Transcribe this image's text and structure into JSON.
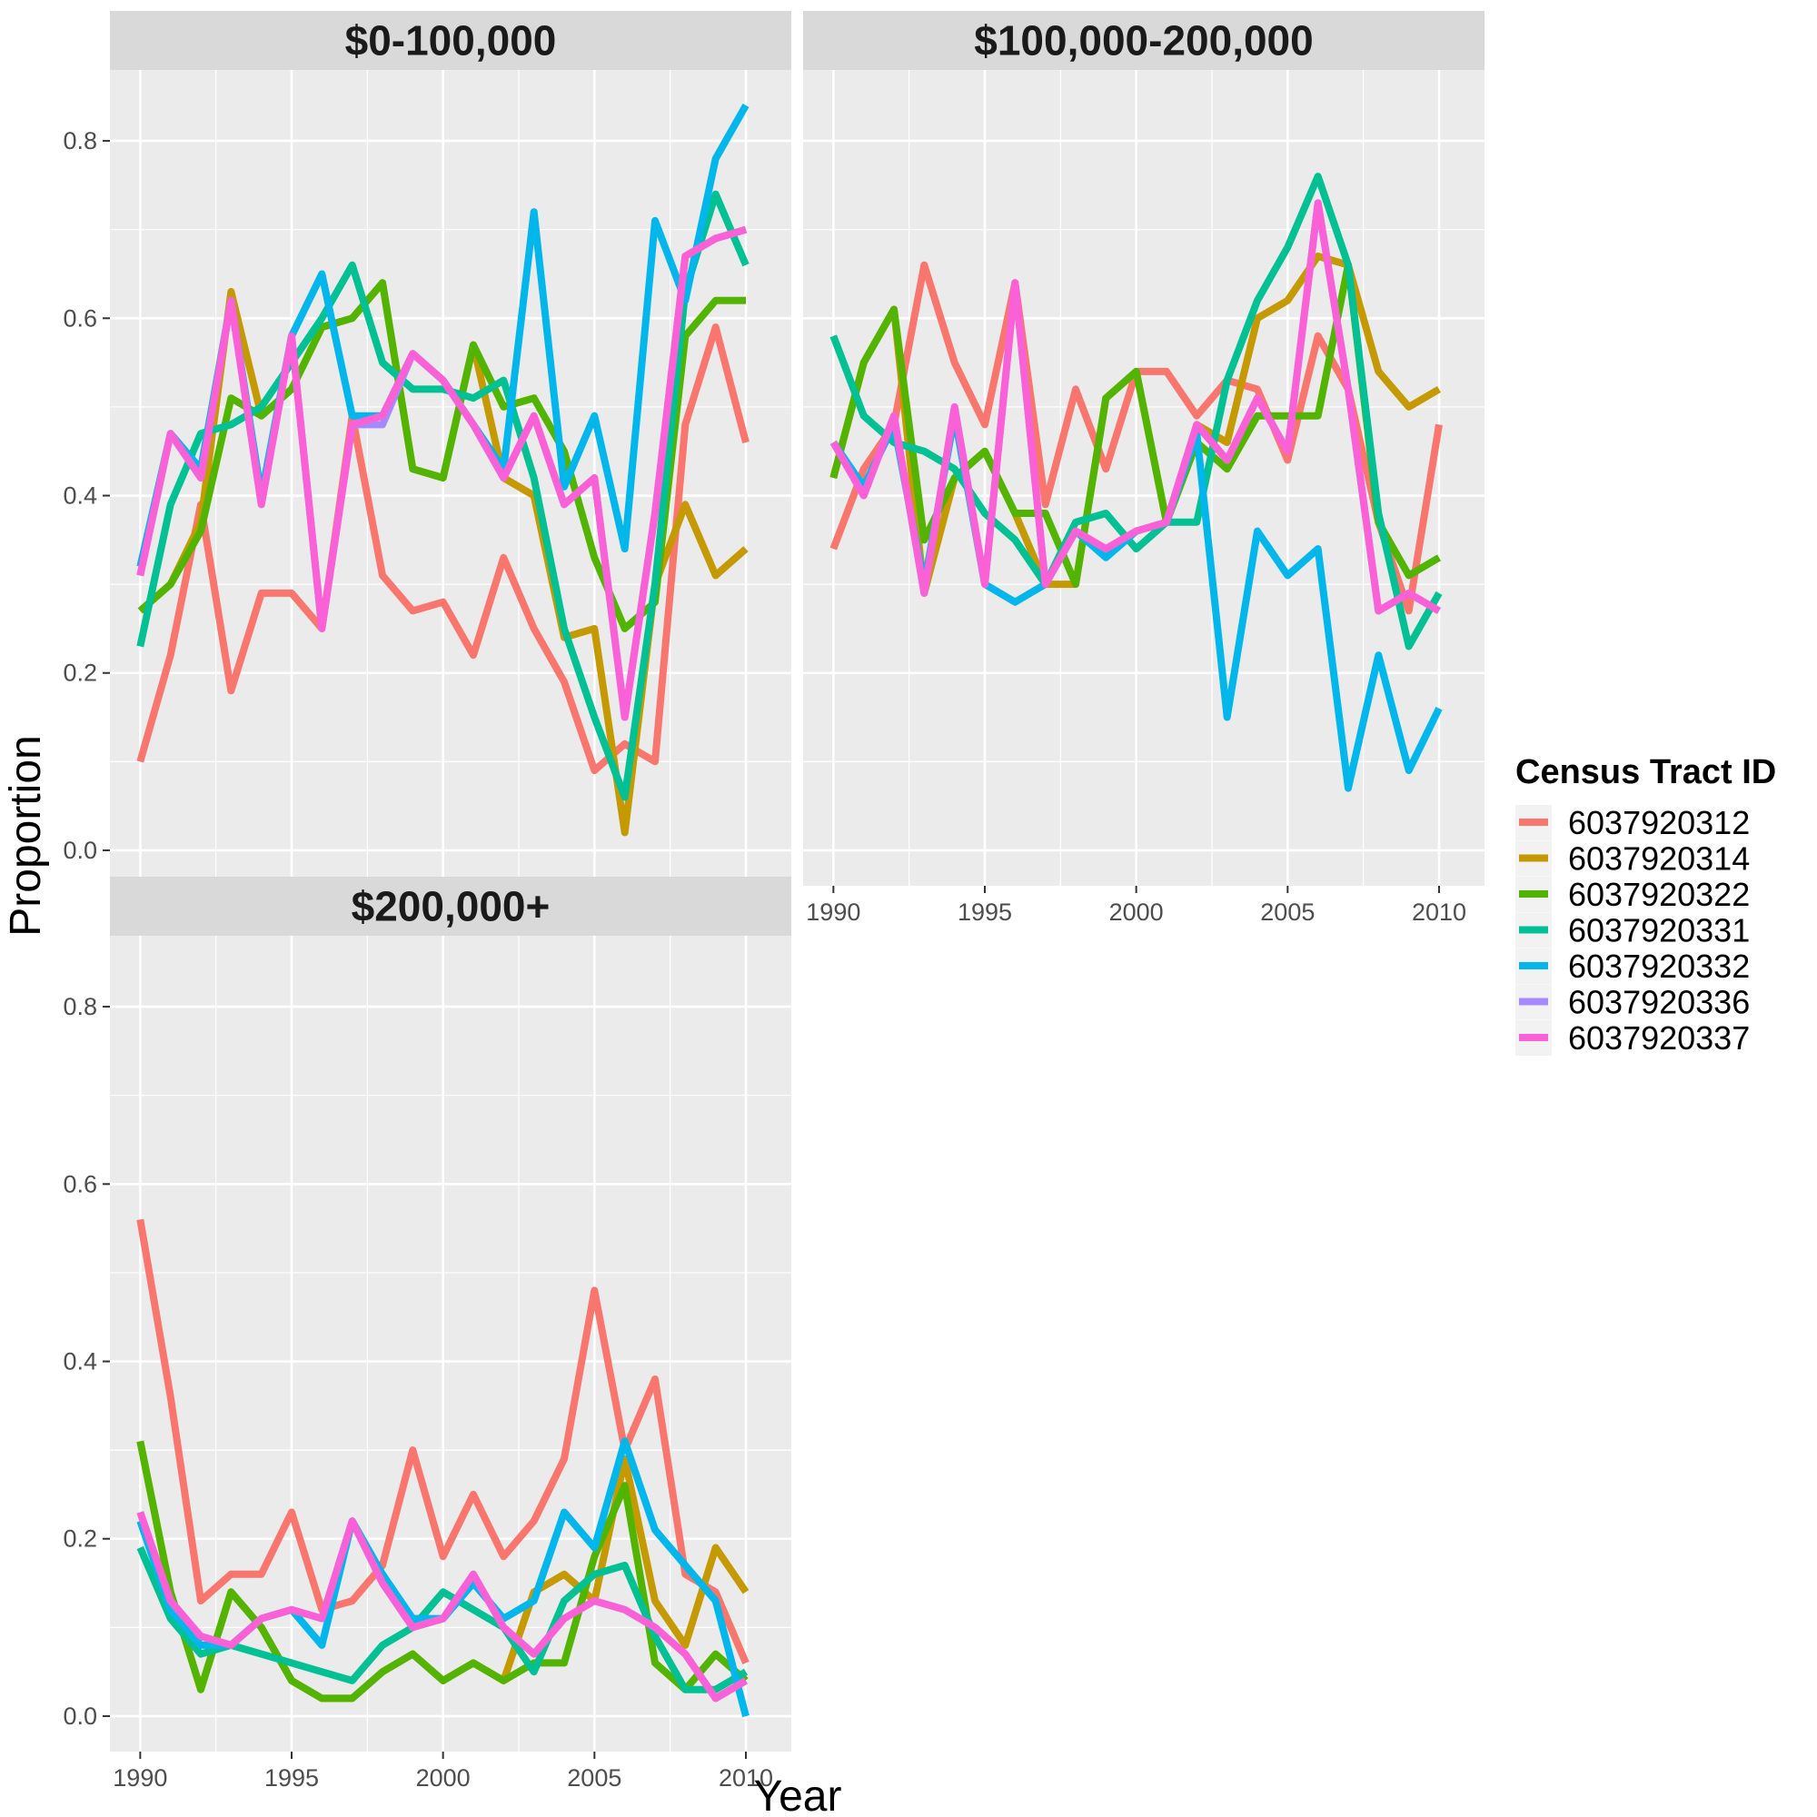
{
  "chart_data": {
    "type": "line",
    "xlabel": "Year",
    "ylabel": "Proportion",
    "xlim": [
      1989,
      2011.5
    ],
    "ylim": [
      -0.04,
      0.88
    ],
    "x_ticks": [
      "1990",
      "1995",
      "2000",
      "2005",
      "2010"
    ],
    "y_ticks": [
      "0.0",
      "0.2",
      "0.4",
      "0.6",
      "0.8"
    ],
    "legend": {
      "title": "Census Tract ID",
      "position": "right",
      "entries": [
        {
          "name": "6037920312",
          "color": "#F8766D"
        },
        {
          "name": "6037920314",
          "color": "#C49A00"
        },
        {
          "name": "6037920322",
          "color": "#53B400"
        },
        {
          "name": "6037920331",
          "color": "#00C094"
        },
        {
          "name": "6037920332",
          "color": "#00B6EB"
        },
        {
          "name": "6037920336",
          "color": "#A58AFF"
        },
        {
          "name": "6037920337",
          "color": "#FB61D7"
        }
      ]
    },
    "x": [
      1990,
      1991,
      1992,
      1993,
      1994,
      1995,
      1996,
      1997,
      1998,
      1999,
      2000,
      2001,
      2002,
      2003,
      2004,
      2005,
      2006,
      2007,
      2008,
      2009,
      2010
    ],
    "facets": [
      {
        "title": "$0-100,000",
        "series": [
          {
            "name": "6037920312",
            "values": [
              0.1,
              0.22,
              0.39,
              0.18,
              0.29,
              0.29,
              0.25,
              0.49,
              0.31,
              0.27,
              0.28,
              0.22,
              0.33,
              0.25,
              0.19,
              0.09,
              0.12,
              0.1,
              0.48,
              0.59,
              0.46
            ]
          },
          {
            "name": "6037920314",
            "values": [
              0.27,
              0.3,
              0.37,
              0.63,
              0.49,
              0.52,
              0.59,
              0.6,
              0.64,
              0.43,
              0.42,
              0.57,
              0.42,
              0.4,
              0.24,
              0.25,
              0.02,
              0.3,
              0.39,
              0.31,
              0.34
            ]
          },
          {
            "name": "6037920322",
            "values": [
              0.27,
              0.3,
              0.36,
              0.51,
              0.49,
              0.52,
              0.59,
              0.6,
              0.64,
              0.43,
              0.42,
              0.57,
              0.5,
              0.51,
              0.45,
              0.33,
              0.25,
              0.28,
              0.58,
              0.62,
              0.62
            ]
          },
          {
            "name": "6037920331",
            "values": [
              0.23,
              0.39,
              0.47,
              0.48,
              0.5,
              0.55,
              0.6,
              0.66,
              0.55,
              0.52,
              0.52,
              0.51,
              0.53,
              0.42,
              0.25,
              0.15,
              0.06,
              0.3,
              0.63,
              0.74,
              0.66
            ]
          },
          {
            "name": "6037920332",
            "values": [
              0.32,
              0.47,
              0.43,
              0.62,
              0.4,
              0.58,
              0.65,
              0.49,
              0.49,
              0.56,
              0.53,
              0.48,
              0.43,
              0.72,
              0.41,
              0.49,
              0.34,
              0.71,
              0.62,
              0.78,
              0.84
            ]
          },
          {
            "name": "6037920336",
            "values": [
              0.31,
              0.47,
              0.42,
              0.62,
              0.39,
              0.58,
              0.25,
              0.48,
              0.48,
              0.56,
              0.53,
              0.48,
              0.42,
              0.49,
              0.39,
              0.42,
              0.15,
              0.38,
              0.67,
              0.69,
              0.7
            ]
          },
          {
            "name": "6037920337",
            "values": [
              0.31,
              0.47,
              0.42,
              0.62,
              0.39,
              0.58,
              0.25,
              0.48,
              0.49,
              0.56,
              0.53,
              0.48,
              0.42,
              0.49,
              0.39,
              0.42,
              0.15,
              0.38,
              0.67,
              0.69,
              0.7
            ]
          }
        ]
      },
      {
        "title": "$100,000-200,000",
        "series": [
          {
            "name": "6037920312",
            "values": [
              0.34,
              0.43,
              0.48,
              0.66,
              0.55,
              0.48,
              0.64,
              0.39,
              0.52,
              0.43,
              0.54,
              0.54,
              0.49,
              0.53,
              0.52,
              0.44,
              0.58,
              0.52,
              0.37,
              0.27,
              0.48
            ]
          },
          {
            "name": "6037920314",
            "values": [
              0.42,
              0.55,
              0.61,
              0.29,
              0.42,
              0.45,
              0.38,
              0.3,
              0.3,
              0.51,
              0.54,
              0.37,
              0.48,
              0.46,
              0.6,
              0.62,
              0.67,
              0.66,
              0.54,
              0.5,
              0.52
            ]
          },
          {
            "name": "6037920322",
            "values": [
              0.42,
              0.55,
              0.61,
              0.35,
              0.42,
              0.45,
              0.38,
              0.38,
              0.3,
              0.51,
              0.54,
              0.37,
              0.46,
              0.43,
              0.49,
              0.49,
              0.49,
              0.66,
              0.37,
              0.31,
              0.33
            ]
          },
          {
            "name": "6037920331",
            "values": [
              0.58,
              0.49,
              0.46,
              0.45,
              0.43,
              0.38,
              0.35,
              0.3,
              0.37,
              0.38,
              0.34,
              0.37,
              0.37,
              0.53,
              0.62,
              0.68,
              0.76,
              0.66,
              0.38,
              0.23,
              0.29
            ]
          },
          {
            "name": "6037920332",
            "values": [
              0.46,
              0.41,
              0.48,
              0.3,
              0.49,
              0.3,
              0.28,
              0.3,
              0.36,
              0.33,
              0.36,
              0.37,
              0.47,
              0.15,
              0.36,
              0.31,
              0.34,
              0.07,
              0.22,
              0.09,
              0.16
            ]
          },
          {
            "name": "6037920336",
            "values": [
              0.46,
              0.4,
              0.49,
              0.29,
              0.5,
              0.3,
              0.64,
              0.3,
              0.36,
              0.34,
              0.36,
              0.37,
              0.48,
              0.44,
              0.51,
              0.45,
              0.73,
              0.52,
              0.27,
              0.29,
              0.27
            ]
          },
          {
            "name": "6037920337",
            "values": [
              0.46,
              0.4,
              0.49,
              0.29,
              0.5,
              0.3,
              0.64,
              0.3,
              0.36,
              0.34,
              0.36,
              0.37,
              0.48,
              0.44,
              0.51,
              0.45,
              0.73,
              0.52,
              0.27,
              0.29,
              0.27
            ]
          }
        ]
      },
      {
        "title": "$200,000+",
        "series": [
          {
            "name": "6037920312",
            "values": [
              0.56,
              0.36,
              0.13,
              0.16,
              0.16,
              0.23,
              0.12,
              0.13,
              0.17,
              0.3,
              0.18,
              0.25,
              0.18,
              0.22,
              0.29,
              0.48,
              0.3,
              0.38,
              0.16,
              0.14,
              0.06
            ]
          },
          {
            "name": "6037920314",
            "values": [
              0.31,
              0.14,
              0.03,
              0.14,
              0.1,
              0.04,
              0.02,
              0.02,
              0.05,
              0.07,
              0.04,
              0.06,
              0.04,
              0.14,
              0.16,
              0.13,
              0.29,
              0.13,
              0.08,
              0.19,
              0.14
            ]
          },
          {
            "name": "6037920322",
            "values": [
              0.31,
              0.14,
              0.03,
              0.14,
              0.1,
              0.04,
              0.02,
              0.02,
              0.05,
              0.07,
              0.04,
              0.06,
              0.04,
              0.06,
              0.06,
              0.18,
              0.26,
              0.06,
              0.03,
              0.07,
              0.04
            ]
          },
          {
            "name": "6037920331",
            "values": [
              0.19,
              0.11,
              0.07,
              0.08,
              0.07,
              0.06,
              0.05,
              0.04,
              0.08,
              0.1,
              0.14,
              0.12,
              0.1,
              0.05,
              0.13,
              0.16,
              0.17,
              0.09,
              0.03,
              0.03,
              0.05
            ]
          },
          {
            "name": "6037920332",
            "values": [
              0.22,
              0.12,
              0.08,
              0.08,
              0.11,
              0.12,
              0.08,
              0.22,
              0.16,
              0.11,
              0.11,
              0.15,
              0.11,
              0.13,
              0.23,
              0.19,
              0.31,
              0.21,
              0.17,
              0.13,
              0.0
            ]
          },
          {
            "name": "6037920336",
            "values": [
              0.23,
              0.13,
              0.09,
              0.08,
              0.11,
              0.12,
              0.11,
              0.22,
              0.15,
              0.1,
              0.11,
              0.16,
              0.1,
              0.07,
              0.11,
              0.13,
              0.12,
              0.1,
              0.07,
              0.02,
              0.04
            ]
          },
          {
            "name": "6037920337",
            "values": [
              0.23,
              0.13,
              0.09,
              0.08,
              0.11,
              0.12,
              0.11,
              0.22,
              0.15,
              0.1,
              0.11,
              0.16,
              0.1,
              0.07,
              0.11,
              0.13,
              0.12,
              0.1,
              0.07,
              0.02,
              0.04
            ]
          }
        ]
      }
    ]
  }
}
